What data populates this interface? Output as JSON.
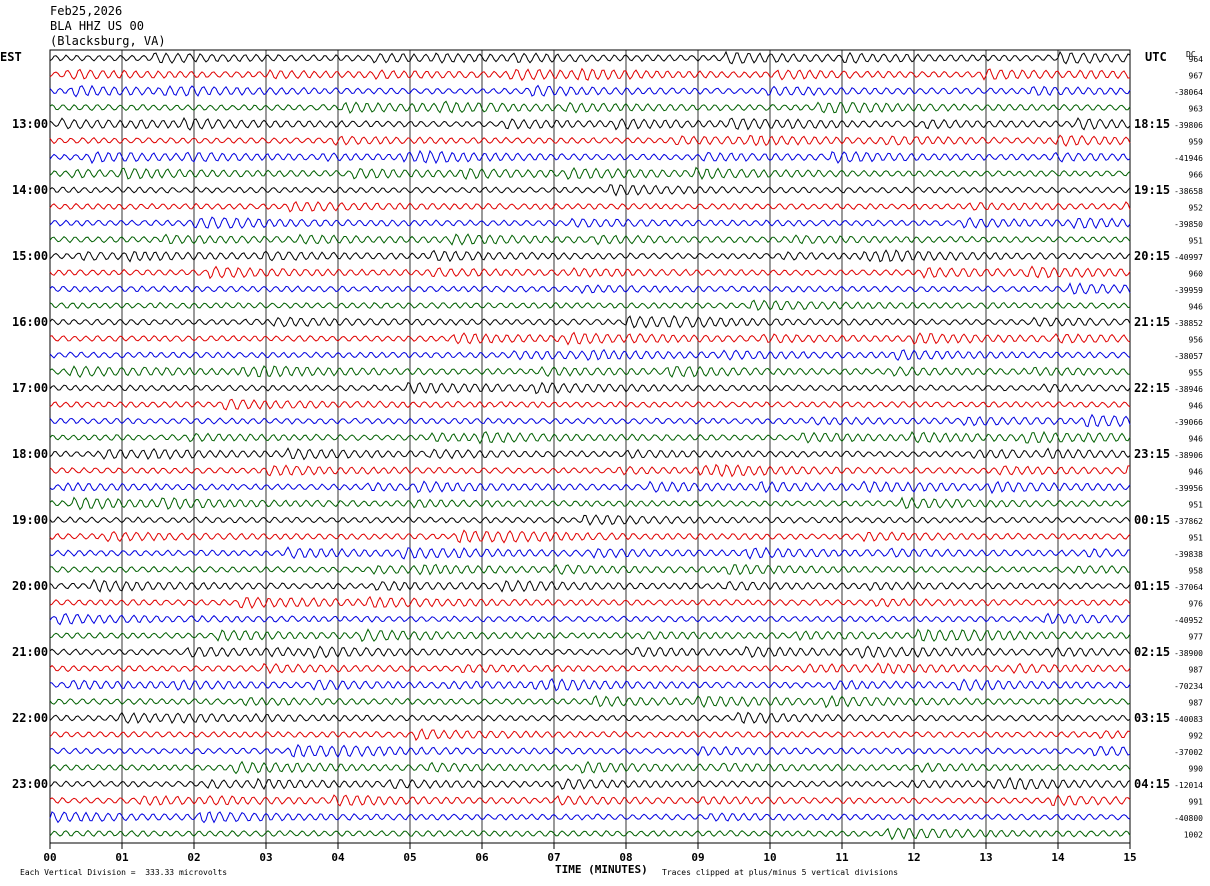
{
  "header": {
    "date": "Feb25,2026",
    "station": "BLA HHZ US 00",
    "location": "(Blacksburg, VA)"
  },
  "left_tz": "EST",
  "right_tz": "UTC",
  "dc_label": "DC",
  "colors": {
    "trace_cycle": [
      "#000000",
      "#e00000",
      "#0000e0",
      "#006000"
    ],
    "grid": "#000000"
  },
  "chart_data": {
    "type": "line",
    "title": "BLA HHZ US 00 (Blacksburg, VA) Feb25,2026",
    "xlabel": "TIME (MINUTES)",
    "x_ticks": [
      "00",
      "01",
      "02",
      "03",
      "04",
      "05",
      "06",
      "07",
      "08",
      "09",
      "10",
      "11",
      "12",
      "13",
      "14",
      "15"
    ],
    "xlim": [
      0,
      15
    ],
    "rows_per_hour": 4,
    "est_labels": [
      "13:00",
      "14:00",
      "15:00",
      "16:00",
      "17:00",
      "18:00",
      "19:00",
      "20:00",
      "21:00",
      "22:00",
      "23:00"
    ],
    "utc_labels": [
      "18:15",
      "19:15",
      "20:15",
      "21:15",
      "22:15",
      "23:15",
      "00:15",
      "01:15",
      "02:15",
      "03:15",
      "04:15"
    ],
    "dc_offsets": [
      "964",
      "967",
      "-38064",
      "963",
      "-39806",
      "959",
      "-41946",
      "966",
      "-38658",
      "952",
      "-39850",
      "951",
      "-40997",
      "960",
      "-39959",
      "946",
      "-38852",
      "956",
      "-38057",
      "955",
      "-38946",
      "946",
      "-39066",
      "946",
      "-38906",
      "946",
      "-39956",
      "951",
      "-37862",
      "951",
      "-39838",
      "958",
      "-37064",
      "976",
      "-40952",
      "977",
      "-38900",
      "987",
      "-70234",
      "987",
      "-40083",
      "992",
      "-37002",
      "990",
      "-12014",
      "991",
      "-40800",
      "1002"
    ],
    "trace_count": 48
  },
  "footer": {
    "scale_note": "Each Vertical Division =  333.33 microvolts",
    "clip_note": "Traces clipped at plus/minus 5 vertical divisions"
  }
}
